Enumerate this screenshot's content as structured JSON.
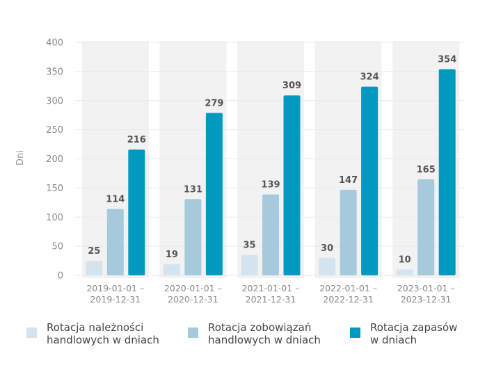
{
  "chart_data": {
    "type": "bar",
    "categories": [
      [
        "2019-01-01 –",
        "2019-12-31"
      ],
      [
        "2020-01-01 –",
        "2020-12-31"
      ],
      [
        "2021-01-01 –",
        "2021-12-31"
      ],
      [
        "2022-01-01 –",
        "2022-12-31"
      ],
      [
        "2023-01-01 –",
        "2023-12-31"
      ]
    ],
    "series": [
      {
        "name": "Rotacja należności\nhandlowych w dniach",
        "values": [
          25,
          19,
          35,
          30,
          10
        ],
        "color": "#d3e4ee"
      },
      {
        "name": "Rotacja zobowiązań\nhandlowych w dniach",
        "values": [
          114,
          131,
          139,
          147,
          165
        ],
        "color": "#a6c9dc"
      },
      {
        "name": "Rotacja zapasów\nw dniach",
        "values": [
          216,
          279,
          309,
          324,
          354
        ],
        "color": "#0099c0"
      }
    ],
    "ylabel": "Dni",
    "ylim": [
      0,
      400
    ],
    "yticks": [
      0,
      50,
      100,
      150,
      200,
      250,
      300,
      350,
      400
    ],
    "grid": true,
    "legend": "bottom",
    "label_color": "#555555",
    "tick_color": "#888888",
    "panel_color": "#f2f2f2"
  }
}
